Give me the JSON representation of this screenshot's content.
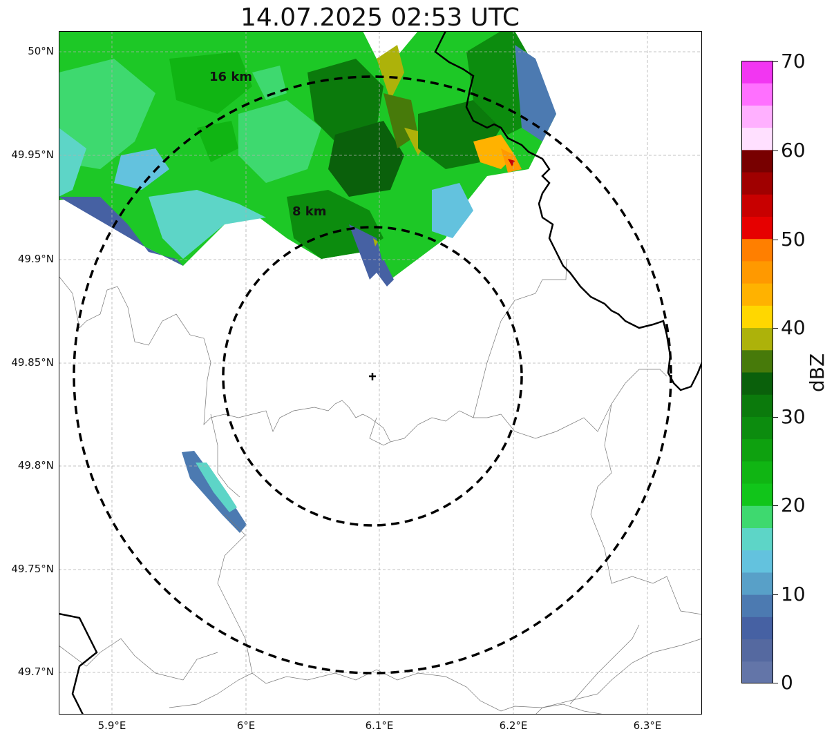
{
  "title": "14.07.2025 02:53 UTC",
  "map": {
    "lat_ticks": [
      "50°N",
      "49.95°N",
      "49.9°N",
      "49.85°N",
      "49.8°N",
      "49.75°N",
      "49.7°N"
    ],
    "lon_ticks": [
      "5.9°E",
      "6°E",
      "6.1°E",
      "6.2°E",
      "6.3°E"
    ],
    "rings": [
      {
        "label": "8 km",
        "radius_km": 8
      },
      {
        "label": "16 km",
        "radius_km": 16
      }
    ],
    "radar_site_marker": "plus-icon",
    "grid": true
  },
  "colorbar": {
    "label": "dBZ",
    "ticks": [
      "70",
      "60",
      "50",
      "40",
      "30",
      "20",
      "10",
      "0"
    ],
    "range": [
      0,
      70
    ],
    "colors": [
      "#6375a8",
      "#5569a0",
      "#4661a3",
      "#4c7ab1",
      "#58a0c8",
      "#63c2de",
      "#5dd5c7",
      "#3ed96f",
      "#11c51a",
      "#10b513",
      "#0ea10f",
      "#0c8c0e",
      "#0b7a0c",
      "#0a600b",
      "#477a0a",
      "#adb20a",
      "#ffd700",
      "#ffb200",
      "#ff9900",
      "#ff7f00",
      "#e60000",
      "#c80000",
      "#a00000",
      "#780000",
      "#ffe0ff",
      "#ffb0ff",
      "#ff70ff",
      "#f236f2"
    ]
  }
}
